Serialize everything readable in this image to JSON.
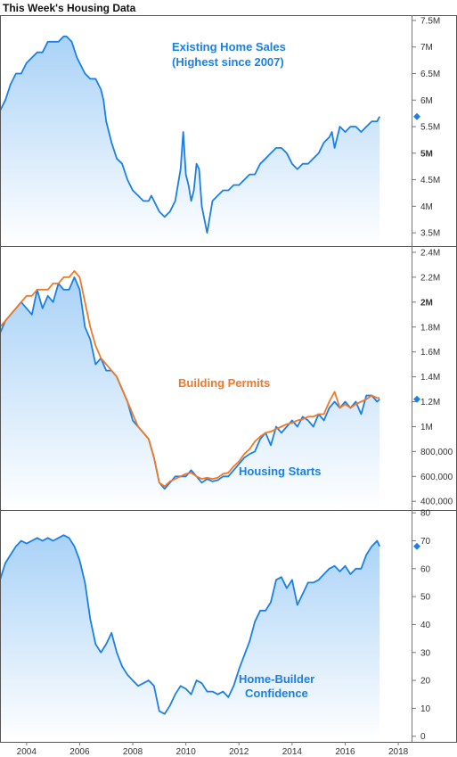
{
  "title": "This Week's Housing Data",
  "colors": {
    "blue": "#1a80e6",
    "orange": "#f07828",
    "fill_top": "#a9d2f7",
    "fill_bottom": "#ffffff"
  },
  "x_ticks": [
    "2004",
    "2006",
    "2008",
    "2010",
    "2012",
    "2014",
    "2016",
    "2018"
  ],
  "chart_data": [
    {
      "type": "area",
      "annotation": [
        "Existing Home Sales",
        "(Highest since 2007)"
      ],
      "xlim": [
        2003.0,
        2018.5
      ],
      "ylim": [
        3250000,
        7600000
      ],
      "y_ticks": [
        {
          "v": 7500000,
          "label": "7.5M",
          "bold": false
        },
        {
          "v": 7000000,
          "label": "7M",
          "bold": false
        },
        {
          "v": 6500000,
          "label": "6.5M",
          "bold": false
        },
        {
          "v": 6000000,
          "label": "6M",
          "bold": false
        },
        {
          "v": 5500000,
          "label": "5.5M",
          "bold": false
        },
        {
          "v": 5000000,
          "label": "5M",
          "bold": true
        },
        {
          "v": 4500000,
          "label": "4.5M",
          "bold": false
        },
        {
          "v": 4000000,
          "label": "4M",
          "bold": false
        },
        {
          "v": 3500000,
          "label": "3.5M",
          "bold": false
        }
      ],
      "last_value": 5690000,
      "series": [
        {
          "color": "#1a80e6",
          "fill": true,
          "x": [
            2003.0,
            2003.2,
            2003.4,
            2003.6,
            2003.8,
            2004.0,
            2004.2,
            2004.4,
            2004.6,
            2004.8,
            2005.0,
            2005.2,
            2005.4,
            2005.5,
            2005.7,
            2005.9,
            2006.0,
            2006.2,
            2006.4,
            2006.6,
            2006.8,
            2006.9,
            2007.0,
            2007.2,
            2007.4,
            2007.6,
            2007.8,
            2008.0,
            2008.2,
            2008.4,
            2008.6,
            2008.7,
            2008.8,
            2009.0,
            2009.2,
            2009.4,
            2009.6,
            2009.8,
            2009.9,
            2010.0,
            2010.1,
            2010.2,
            2010.3,
            2010.4,
            2010.5,
            2010.6,
            2010.8,
            2011.0,
            2011.2,
            2011.4,
            2011.6,
            2011.8,
            2012.0,
            2012.2,
            2012.4,
            2012.6,
            2012.8,
            2013.0,
            2013.2,
            2013.4,
            2013.6,
            2013.8,
            2014.0,
            2014.2,
            2014.4,
            2014.6,
            2014.8,
            2015.0,
            2015.2,
            2015.4,
            2015.5,
            2015.6,
            2015.8,
            2016.0,
            2016.2,
            2016.4,
            2016.6,
            2016.8,
            2017.0,
            2017.2,
            2017.3
          ],
          "y": [
            5800000,
            6000000,
            6300000,
            6500000,
            6500000,
            6700000,
            6800000,
            6900000,
            6900000,
            7100000,
            7100000,
            7100000,
            7200000,
            7200000,
            7100000,
            6800000,
            6700000,
            6500000,
            6400000,
            6400000,
            6200000,
            6000000,
            5600000,
            5200000,
            4900000,
            4800000,
            4500000,
            4300000,
            4200000,
            4100000,
            4100000,
            4200000,
            4100000,
            3900000,
            3800000,
            3900000,
            4100000,
            4700000,
            5400000,
            4600000,
            4400000,
            4100000,
            4300000,
            4800000,
            4700000,
            4000000,
            3500000,
            4100000,
            4200000,
            4300000,
            4300000,
            4400000,
            4400000,
            4500000,
            4600000,
            4600000,
            4800000,
            4900000,
            5000000,
            5100000,
            5100000,
            5000000,
            4800000,
            4700000,
            4800000,
            4800000,
            4900000,
            5000000,
            5200000,
            5300000,
            5400000,
            5100000,
            5500000,
            5400000,
            5500000,
            5500000,
            5400000,
            5500000,
            5600000,
            5600000,
            5690000
          ]
        }
      ]
    },
    {
      "type": "line",
      "annotation": [
        "Building Permits",
        "Housing Starts"
      ],
      "xlim": [
        2003.0,
        2018.5
      ],
      "ylim": [
        330000,
        2450000
      ],
      "y_ticks": [
        {
          "v": 2400000,
          "label": "2.4M",
          "bold": false
        },
        {
          "v": 2200000,
          "label": "2.2M",
          "bold": false
        },
        {
          "v": 2000000,
          "label": "2M",
          "bold": true
        },
        {
          "v": 1800000,
          "label": "1.8M",
          "bold": false
        },
        {
          "v": 1600000,
          "label": "1.6M",
          "bold": false
        },
        {
          "v": 1400000,
          "label": "1.4M",
          "bold": false
        },
        {
          "v": 1200000,
          "label": "1.2M",
          "bold": false
        },
        {
          "v": 1000000,
          "label": "1M",
          "bold": false
        },
        {
          "v": 800000,
          "label": "800,000",
          "bold": false
        },
        {
          "v": 600000,
          "label": "600,000",
          "bold": false
        },
        {
          "v": 400000,
          "label": "400,000",
          "bold": false
        }
      ],
      "last_value": 1220000,
      "series": [
        {
          "name": "Housing Starts",
          "color": "#1a80e6",
          "fill": true,
          "x": [
            2003.0,
            2003.2,
            2003.4,
            2003.6,
            2003.8,
            2004.0,
            2004.2,
            2004.4,
            2004.6,
            2004.8,
            2005.0,
            2005.2,
            2005.4,
            2005.6,
            2005.8,
            2006.0,
            2006.2,
            2006.4,
            2006.6,
            2006.8,
            2007.0,
            2007.2,
            2007.4,
            2007.6,
            2007.8,
            2008.0,
            2008.2,
            2008.4,
            2008.6,
            2008.8,
            2009.0,
            2009.2,
            2009.4,
            2009.6,
            2009.8,
            2010.0,
            2010.2,
            2010.4,
            2010.6,
            2010.8,
            2011.0,
            2011.2,
            2011.4,
            2011.6,
            2011.8,
            2012.0,
            2012.2,
            2012.4,
            2012.6,
            2012.8,
            2013.0,
            2013.2,
            2013.4,
            2013.6,
            2013.8,
            2014.0,
            2014.2,
            2014.4,
            2014.6,
            2014.8,
            2015.0,
            2015.2,
            2015.4,
            2015.6,
            2015.8,
            2016.0,
            2016.2,
            2016.4,
            2016.6,
            2016.8,
            2017.0,
            2017.2,
            2017.3
          ],
          "y": [
            1750000,
            1850000,
            1900000,
            1950000,
            2000000,
            1950000,
            1900000,
            2100000,
            1950000,
            2050000,
            2000000,
            2150000,
            2100000,
            2100000,
            2200000,
            2100000,
            1800000,
            1700000,
            1500000,
            1550000,
            1450000,
            1450000,
            1400000,
            1300000,
            1200000,
            1050000,
            1000000,
            950000,
            900000,
            750000,
            550000,
            500000,
            550000,
            600000,
            600000,
            600000,
            650000,
            600000,
            550000,
            580000,
            560000,
            570000,
            600000,
            600000,
            650000,
            700000,
            750000,
            780000,
            800000,
            900000,
            950000,
            850000,
            1000000,
            950000,
            1000000,
            1050000,
            1000000,
            1080000,
            1050000,
            1000000,
            1100000,
            1050000,
            1150000,
            1200000,
            1150000,
            1200000,
            1150000,
            1200000,
            1100000,
            1250000,
            1250000,
            1200000,
            1220000
          ]
        },
        {
          "name": "Building Permits",
          "color": "#f07828",
          "fill": false,
          "x": [
            2003.0,
            2003.2,
            2003.4,
            2003.6,
            2003.8,
            2004.0,
            2004.2,
            2004.4,
            2004.6,
            2004.8,
            2005.0,
            2005.2,
            2005.4,
            2005.6,
            2005.8,
            2006.0,
            2006.2,
            2006.4,
            2006.6,
            2006.8,
            2007.0,
            2007.2,
            2007.4,
            2007.6,
            2007.8,
            2008.0,
            2008.2,
            2008.4,
            2008.6,
            2008.8,
            2009.0,
            2009.2,
            2009.4,
            2009.6,
            2009.8,
            2010.0,
            2010.2,
            2010.4,
            2010.6,
            2010.8,
            2011.0,
            2011.2,
            2011.4,
            2011.6,
            2011.8,
            2012.0,
            2012.2,
            2012.4,
            2012.6,
            2012.8,
            2013.0,
            2013.2,
            2013.4,
            2013.6,
            2013.8,
            2014.0,
            2014.2,
            2014.4,
            2014.6,
            2014.8,
            2015.0,
            2015.2,
            2015.4,
            2015.6,
            2015.8,
            2016.0,
            2016.2,
            2016.4,
            2016.6,
            2016.8,
            2017.0,
            2017.2,
            2017.3
          ],
          "y": [
            1800000,
            1850000,
            1900000,
            1950000,
            2000000,
            2050000,
            2050000,
            2100000,
            2100000,
            2100000,
            2150000,
            2150000,
            2200000,
            2200000,
            2250000,
            2200000,
            2000000,
            1800000,
            1650000,
            1550000,
            1500000,
            1450000,
            1400000,
            1300000,
            1200000,
            1100000,
            1000000,
            950000,
            900000,
            750000,
            550000,
            520000,
            560000,
            580000,
            600000,
            620000,
            630000,
            600000,
            580000,
            590000,
            580000,
            590000,
            620000,
            630000,
            680000,
            720000,
            780000,
            820000,
            880000,
            920000,
            950000,
            960000,
            980000,
            1000000,
            1020000,
            1030000,
            1050000,
            1060000,
            1080000,
            1080000,
            1100000,
            1100000,
            1200000,
            1280000,
            1150000,
            1180000,
            1150000,
            1180000,
            1200000,
            1220000,
            1250000,
            1230000,
            1230000
          ]
        }
      ]
    },
    {
      "type": "area",
      "annotation": [
        "Home-Builder",
        "Confidence"
      ],
      "xlim": [
        2003.0,
        2018.5
      ],
      "ylim": [
        -2,
        81
      ],
      "y_ticks": [
        {
          "v": 80,
          "label": "80",
          "bold": false
        },
        {
          "v": 70,
          "label": "70",
          "bold": false
        },
        {
          "v": 60,
          "label": "60",
          "bold": false
        },
        {
          "v": 50,
          "label": "50",
          "bold": false
        },
        {
          "v": 40,
          "label": "40",
          "bold": false
        },
        {
          "v": 30,
          "label": "30",
          "bold": false
        },
        {
          "v": 20,
          "label": "20",
          "bold": false
        },
        {
          "v": 10,
          "label": "10",
          "bold": false
        },
        {
          "v": 0,
          "label": "0",
          "bold": false
        }
      ],
      "last_value": 68,
      "series": [
        {
          "color": "#1a80e6",
          "fill": true,
          "x": [
            2003.0,
            2003.2,
            2003.4,
            2003.6,
            2003.8,
            2004.0,
            2004.2,
            2004.4,
            2004.6,
            2004.8,
            2005.0,
            2005.2,
            2005.4,
            2005.6,
            2005.8,
            2006.0,
            2006.2,
            2006.4,
            2006.6,
            2006.8,
            2007.0,
            2007.2,
            2007.4,
            2007.6,
            2007.8,
            2008.0,
            2008.2,
            2008.4,
            2008.6,
            2008.8,
            2009.0,
            2009.2,
            2009.4,
            2009.6,
            2009.8,
            2010.0,
            2010.2,
            2010.4,
            2010.6,
            2010.8,
            2011.0,
            2011.2,
            2011.4,
            2011.6,
            2011.8,
            2012.0,
            2012.2,
            2012.4,
            2012.6,
            2012.8,
            2013.0,
            2013.2,
            2013.4,
            2013.6,
            2013.8,
            2014.0,
            2014.2,
            2014.4,
            2014.6,
            2014.8,
            2015.0,
            2015.2,
            2015.4,
            2015.6,
            2015.8,
            2016.0,
            2016.2,
            2016.4,
            2016.6,
            2016.8,
            2017.0,
            2017.2,
            2017.3
          ],
          "y": [
            56,
            62,
            65,
            68,
            70,
            69,
            70,
            71,
            70,
            71,
            70,
            71,
            72,
            71,
            68,
            63,
            55,
            42,
            33,
            30,
            33,
            37,
            30,
            25,
            22,
            20,
            18,
            19,
            20,
            18,
            9,
            8,
            11,
            15,
            18,
            17,
            15,
            20,
            19,
            16,
            16,
            15,
            16,
            14,
            18,
            24,
            29,
            34,
            41,
            45,
            45,
            48,
            56,
            57,
            53,
            56,
            47,
            51,
            55,
            55,
            56,
            58,
            60,
            61,
            59,
            61,
            58,
            60,
            60,
            65,
            68,
            70,
            68
          ]
        }
      ]
    }
  ]
}
